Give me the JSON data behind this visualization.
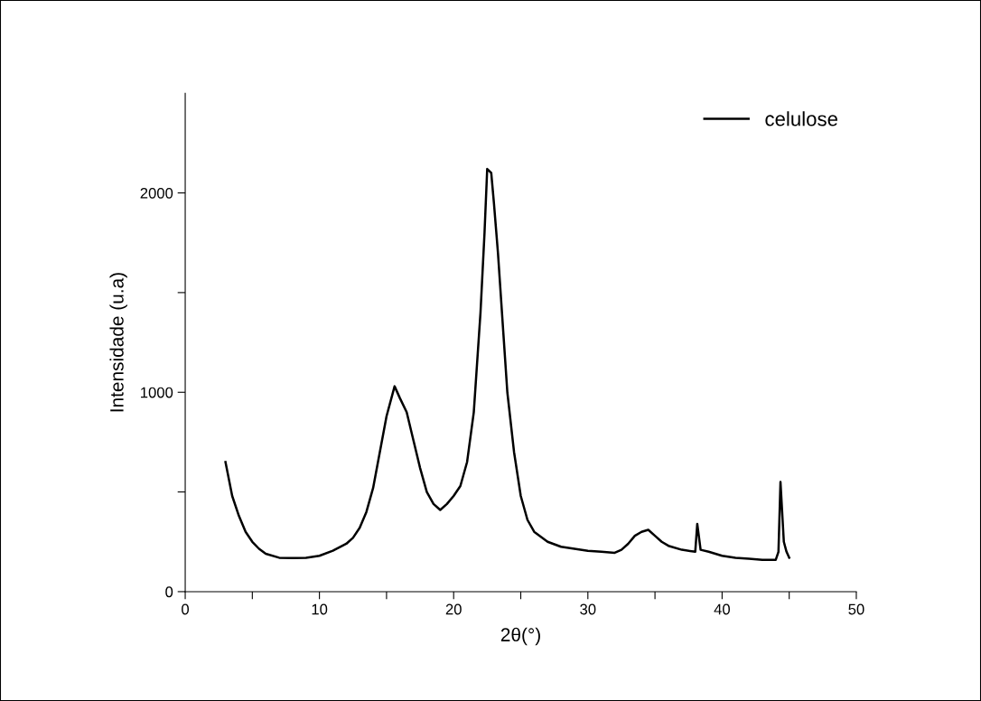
{
  "chart_data": {
    "type": "line",
    "xlabel": "2θ(°)",
    "ylabel": "Intensidade (u.a)",
    "xlim": [
      0,
      50
    ],
    "ylim": [
      0,
      2500
    ],
    "xticks": [
      0,
      {
        "value": 5,
        "label": null
      },
      10,
      {
        "value": 15,
        "label": null
      },
      20,
      {
        "value": 25,
        "label": null
      },
      30,
      {
        "value": 35,
        "label": null
      },
      40,
      {
        "value": 45,
        "label": null
      },
      50
    ],
    "yticks": [
      0,
      {
        "value": 500,
        "label": null
      },
      1000,
      {
        "value": 1500,
        "label": null
      },
      2000
    ],
    "legend": "top right",
    "grid": false,
    "series": [
      {
        "name": "celulose",
        "color": "#000000",
        "x": [
          3,
          3.5,
          4,
          4.5,
          5,
          5.5,
          6,
          7,
          8,
          9,
          10,
          11,
          12,
          12.5,
          13,
          13.5,
          14,
          14.5,
          15,
          15.6,
          16,
          16.5,
          17,
          17.5,
          18,
          18.5,
          19,
          19.5,
          20,
          20.5,
          21,
          21.5,
          22,
          22.3,
          22.5,
          22.8,
          23,
          23.3,
          23.7,
          24,
          24.5,
          25,
          25.5,
          26,
          27,
          28,
          29,
          30,
          31,
          32,
          32.5,
          33,
          33.5,
          34,
          34.5,
          35,
          35.5,
          36,
          37,
          38,
          38.15,
          38.4,
          39,
          40,
          41,
          42,
          43,
          44,
          44.2,
          44.35,
          44.6,
          44.8,
          45
        ],
        "values": [
          650,
          480,
          380,
          300,
          250,
          215,
          190,
          170,
          168,
          170,
          180,
          205,
          240,
          270,
          320,
          400,
          520,
          700,
          880,
          1030,
          970,
          900,
          760,
          620,
          500,
          440,
          410,
          440,
          480,
          530,
          650,
          900,
          1400,
          1800,
          2120,
          2100,
          1950,
          1700,
          1300,
          1000,
          700,
          480,
          360,
          300,
          250,
          225,
          215,
          205,
          200,
          195,
          210,
          240,
          280,
          300,
          310,
          280,
          250,
          230,
          210,
          200,
          340,
          210,
          200,
          180,
          170,
          165,
          160,
          160,
          200,
          550,
          250,
          200,
          170
        ]
      }
    ]
  }
}
